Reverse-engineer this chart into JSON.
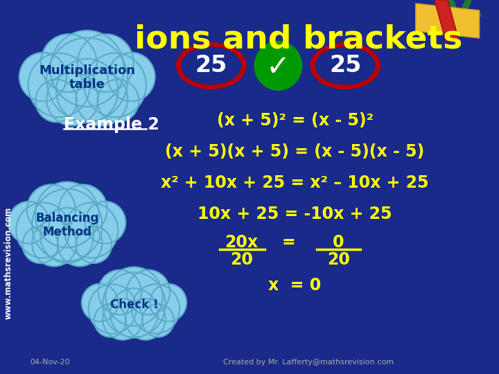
{
  "bg_color": "#1a2a8a",
  "title_text": "ions and brackets",
  "title_color": "#ffff00",
  "www_text": "www.mathsrevision.com",
  "cloud1_text": "Multiplication\ntable",
  "cloud2_text": "Balancing\nMethod",
  "cloud3_text": "Check !",
  "cloud_color": "#87ceeb",
  "example_text": "Example 2",
  "example_color": "#ffffff",
  "line1": "(x + 5)² = (x - 5)²",
  "line2": "(x + 5)(x + 5) = (x - 5)(x - 5)",
  "line3": "x² + 10x + 25 = x² – 10x + 25",
  "line4": "10x + 25 = -10x + 25",
  "line6": "x  = 0",
  "eq_color": "#ffff00",
  "num25_color": "#ffffff",
  "date_text": "04-Nov-20",
  "credit_text": "Created by Mr. Lafferty@mathsrevision.com",
  "footer_color": "#aaaaaa"
}
